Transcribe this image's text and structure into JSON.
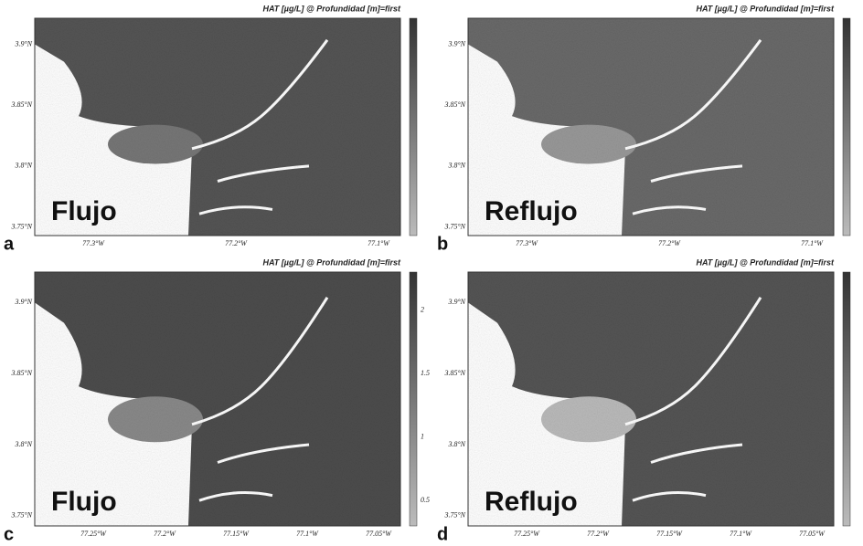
{
  "panels": [
    {
      "letter": "a",
      "title": "HAT [µg/L] @ Profundidad [m]=first",
      "label": "Flujo",
      "y_labels": [
        "3.9°N",
        "3.85°N",
        "3.8°N",
        "3.75°N"
      ],
      "x_labels": [
        "77.3°W",
        "77.2°W",
        "77.1°W"
      ],
      "colorbar_labels": []
    },
    {
      "letter": "b",
      "title": "HAT [µg/L] @ Profundidad [m]=first",
      "label": "Reflujo",
      "y_labels": [
        "3.9°N",
        "3.85°N",
        "3.8°N",
        "3.75°N"
      ],
      "x_labels": [
        "77.3°W",
        "77.2°W",
        "77.1°W"
      ],
      "colorbar_labels": []
    },
    {
      "letter": "c",
      "title": "HAT [µg/L] @ Profundidad [m]=first",
      "label": "Flujo",
      "y_labels": [
        "3.9°N",
        "3.85°N",
        "3.8°N",
        "3.75°N"
      ],
      "x_labels": [
        "77.25°W",
        "77.2°W",
        "77.15°W",
        "77.1°W",
        "77.05°W"
      ],
      "colorbar_labels": [
        "2",
        "1.5",
        "1",
        "0.5"
      ]
    },
    {
      "letter": "d",
      "title": "HAT [µg/L] @ Profundidad [m]=first",
      "label": "Reflujo",
      "y_labels": [
        "3.9°N",
        "3.85°N",
        "3.8°N",
        "3.75°N"
      ],
      "x_labels": [
        "77.25°W",
        "77.2°W",
        "77.15°W",
        "77.1°W",
        "77.05°W"
      ],
      "colorbar_labels": []
    }
  ]
}
